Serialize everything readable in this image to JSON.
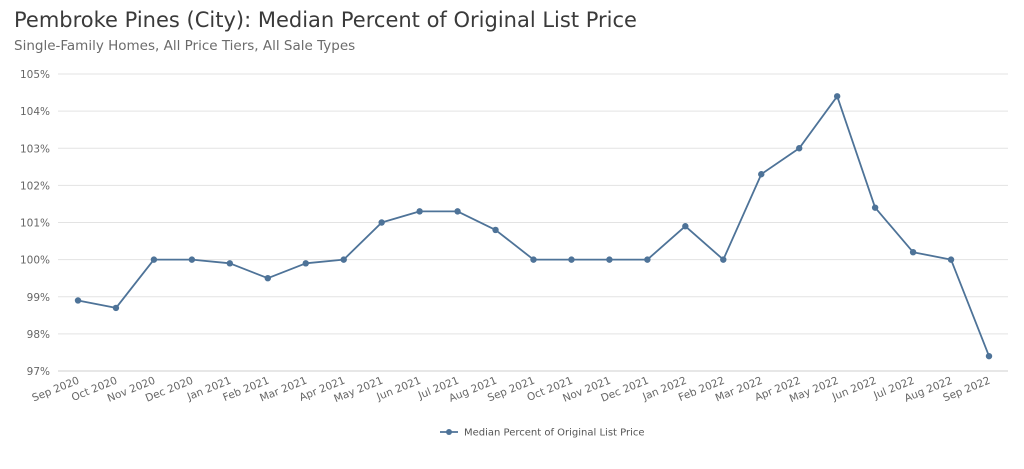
{
  "header": {
    "title": "Pembroke Pines (City): Median Percent of Original List Price",
    "subtitle": "Single-Family Homes, All Price Tiers, All Sale Types"
  },
  "chart_data": {
    "type": "line",
    "title": "Pembroke Pines (City): Median Percent of Original List Price",
    "subtitle": "Single-Family Homes, All Price Tiers, All Sale Types",
    "xlabel": "",
    "ylabel": "",
    "categories": [
      "Sep 2020",
      "Oct 2020",
      "Nov 2020",
      "Dec 2020",
      "Jan 2021",
      "Feb 2021",
      "Mar 2021",
      "Apr 2021",
      "May 2021",
      "Jun 2021",
      "Jul 2021",
      "Aug 2021",
      "Sep 2021",
      "Oct 2021",
      "Nov 2021",
      "Dec 2021",
      "Jan 2022",
      "Feb 2022",
      "Mar 2022",
      "Apr 2022",
      "May 2022",
      "Jun 2022",
      "Jul 2022",
      "Aug 2022",
      "Sep 2022"
    ],
    "series": [
      {
        "name": "Median Percent of Original List Price",
        "color": "#4e7398",
        "values": [
          98.9,
          98.7,
          100.0,
          100.0,
          99.9,
          99.5,
          99.9,
          100.0,
          101.0,
          101.3,
          101.3,
          100.8,
          100.0,
          100.0,
          100.0,
          100.0,
          100.9,
          100.0,
          102.3,
          103.0,
          104.4,
          101.4,
          100.2,
          100.0,
          97.4
        ]
      }
    ],
    "yticks": [
      97,
      98,
      99,
      100,
      101,
      102,
      103,
      104,
      105
    ],
    "ytick_labels": [
      "97%",
      "98%",
      "99%",
      "100%",
      "101%",
      "102%",
      "103%",
      "104%",
      "105%"
    ],
    "ylim": [
      97,
      105
    ],
    "grid": true,
    "legend_position": "bottom-center"
  }
}
